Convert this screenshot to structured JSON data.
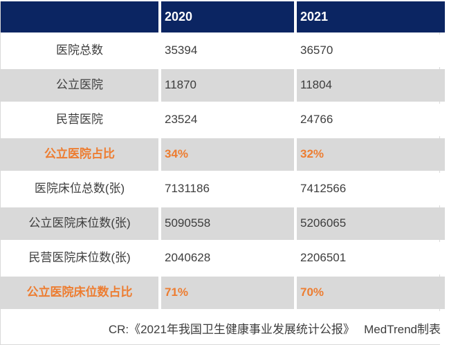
{
  "chart_data": {
    "type": "table",
    "columns": [
      "",
      "2020",
      "2021"
    ],
    "rows": [
      [
        "医院总数",
        "35394",
        "36570"
      ],
      [
        "公立医院",
        "11870",
        "11804"
      ],
      [
        "民营医院",
        "23524",
        "24766"
      ],
      [
        "公立医院占比",
        "34%",
        "32%"
      ],
      [
        "医院床位总数(张)",
        "7131186",
        "7412566"
      ],
      [
        "公立医院床位数(张)",
        "5090558",
        "5206065"
      ],
      [
        "民营医院床位数(张)",
        "2040628",
        "2206501"
      ],
      [
        "公立医院床位数占比",
        "71%",
        "70%"
      ]
    ],
    "highlight_rows": [
      3,
      7
    ],
    "title": "",
    "legend_position": "none"
  },
  "footer": {
    "text": "CR:《2021年我国卫生健康事业发展统计公报》　 MedTrend制表"
  },
  "colors": {
    "header-bg": "#0b2562",
    "row-alt-bg": "#d9d9d9",
    "highlight-text": "#ed7d31",
    "body-text": "#3d3d3d"
  }
}
